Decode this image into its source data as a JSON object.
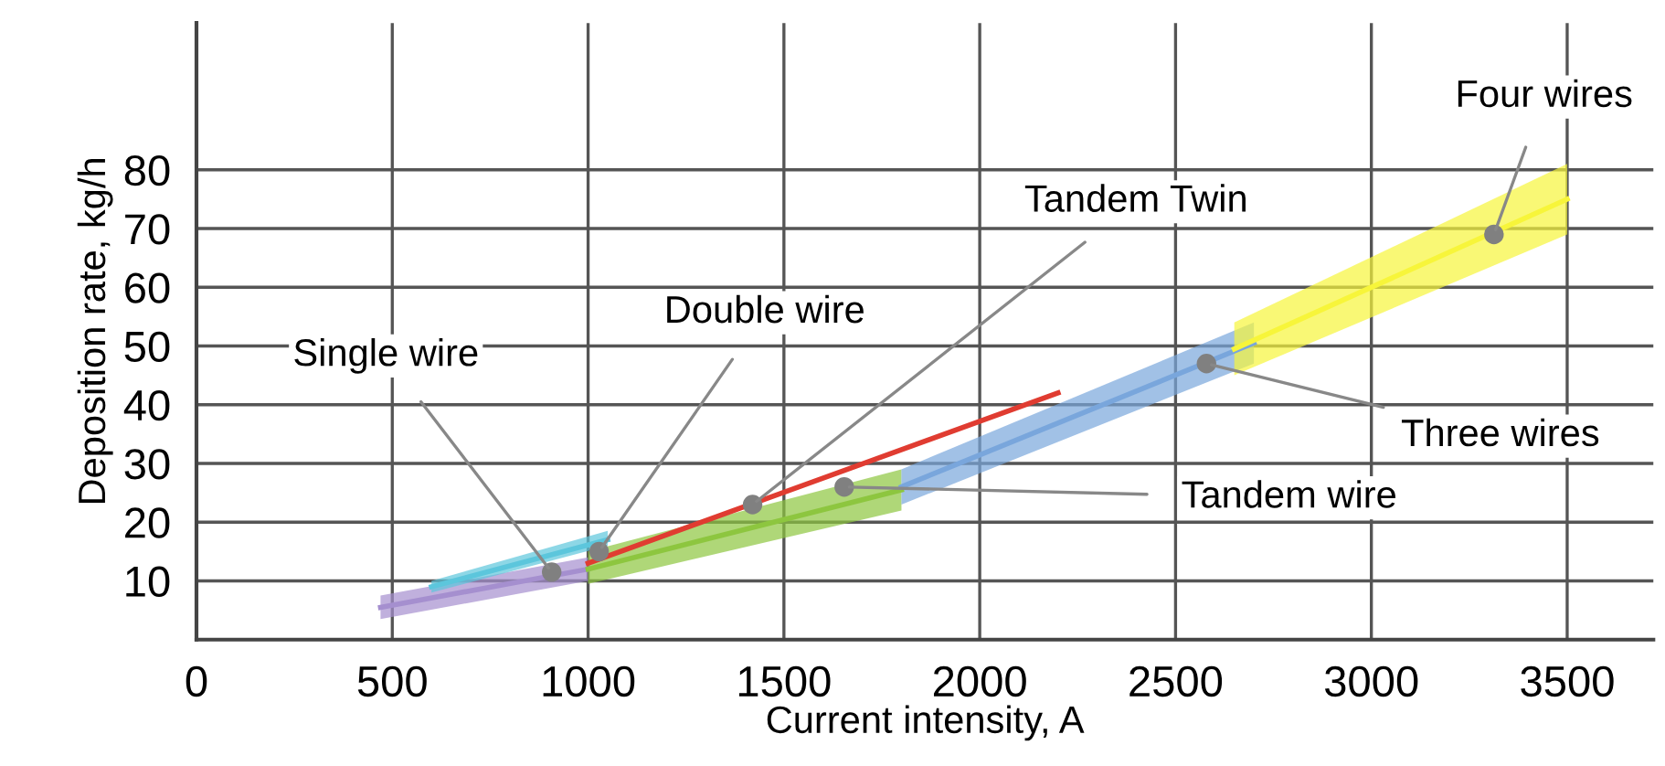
{
  "chart_data": {
    "type": "line",
    "xlabel": "Current intensity, A",
    "ylabel": "Deposition rate, kg/h",
    "xlim": [
      0,
      3720
    ],
    "ylim": [
      0,
      105
    ],
    "xticks": [
      0,
      500,
      1000,
      1500,
      2000,
      2500,
      3000,
      3500
    ],
    "yticks": [
      10,
      20,
      30,
      40,
      50,
      60,
      70,
      80
    ],
    "grid": true,
    "legend": false,
    "series": [
      {
        "color": "#a58fcf",
        "x": [
          470,
          1000
        ],
        "values": [
          5.5,
          12
        ],
        "lower": [
          3.5,
          10
        ],
        "upper": [
          7.5,
          14
        ]
      },
      {
        "color": "#5cc6dc",
        "x": [
          600,
          1050
        ],
        "values": [
          9,
          17
        ],
        "lower": [
          8,
          16
        ],
        "upper": [
          10,
          18.5
        ]
      },
      {
        "color": "#8dc63f",
        "x": [
          1000,
          1800
        ],
        "values": [
          12,
          25.5
        ],
        "lower": [
          9.5,
          22
        ],
        "upper": [
          15,
          29
        ]
      },
      {
        "color": "#79a6dc",
        "x": [
          1800,
          2700
        ],
        "values": [
          26,
          50.5
        ],
        "lower": [
          23,
          47
        ],
        "upper": [
          29,
          54
        ]
      },
      {
        "color": "#f7f53a",
        "x": [
          2650,
          3500
        ],
        "values": [
          49.5,
          75
        ],
        "lower": [
          45,
          69
        ],
        "upper": [
          54,
          81
        ]
      },
      {
        "color": "#e03c31",
        "x": [
          1000,
          2200
        ],
        "values": [
          13,
          42
        ]
      },
      {
        "type": "scatter",
        "color": "#808080",
        "x": [
          907,
          1028,
          1420,
          1654,
          2579,
          3313
        ],
        "values": [
          11.5,
          15,
          23,
          26,
          47,
          69
        ],
        "marker": "circle"
      }
    ],
    "annotations": [
      {
        "text": "Single wire",
        "x": 907,
        "y": 11.5
      },
      {
        "text": "Double wire",
        "x": 1028,
        "y": 15
      },
      {
        "text": "Tandem Twin",
        "x": 1420,
        "y": 23
      },
      {
        "text": "Tandem wire",
        "x": 1654,
        "y": 26
      },
      {
        "text": "Three wires",
        "x": 2579,
        "y": 47
      },
      {
        "text": "Four wires",
        "x": 3313,
        "y": 69
      }
    ]
  }
}
